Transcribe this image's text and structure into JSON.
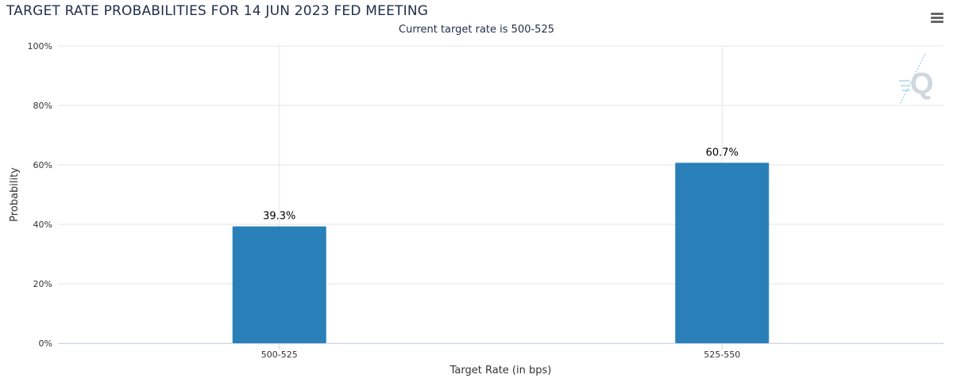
{
  "header": {
    "title": "TARGET RATE PROBABILITIES FOR 14 JUN 2023 FED MEETING",
    "subtitle": "Current target rate is 500-525"
  },
  "icons": {
    "menu": "hamburger-menu-icon",
    "watermark": "quikstrike-logo-icon"
  },
  "colors": {
    "bar": "#2980b9",
    "watermark": "#cfd8df",
    "watermark_accent": "#7ec3e6"
  },
  "chart_data": {
    "type": "bar",
    "title": "TARGET RATE PROBABILITIES FOR 14 JUN 2023 FED MEETING",
    "subtitle": "Current target rate is 500-525",
    "categories": [
      "500-525",
      "525-550"
    ],
    "values": [
      39.3,
      60.7
    ],
    "data_labels": [
      "39.3%",
      "60.7%"
    ],
    "xlabel": "Target Rate (in bps)",
    "ylabel": "Probability",
    "ylim": [
      0,
      100
    ],
    "yticks": [
      0,
      20,
      40,
      60,
      80,
      100
    ],
    "ytick_labels": [
      "0%",
      "20%",
      "40%",
      "60%",
      "80%",
      "100%"
    ],
    "grid": true,
    "legend": "none"
  }
}
